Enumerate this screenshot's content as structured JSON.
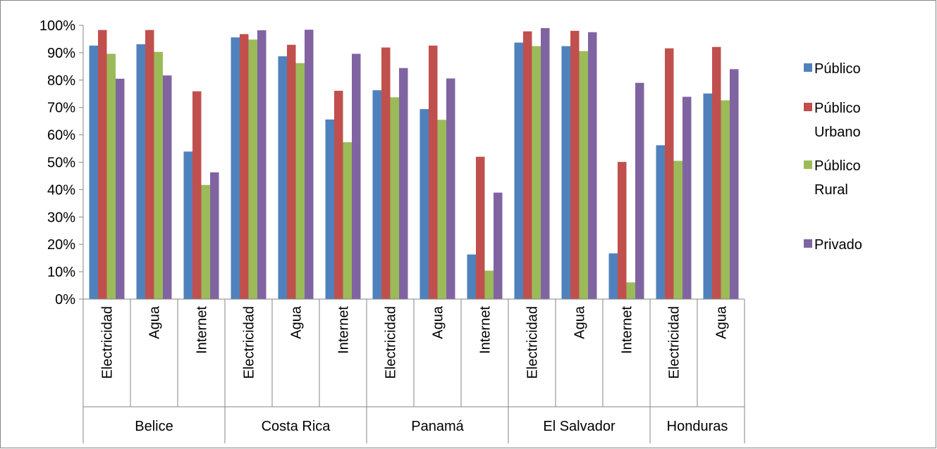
{
  "chart_data": {
    "type": "bar",
    "y_ticks": [
      "0%",
      "10%",
      "20%",
      "30%",
      "40%",
      "50%",
      "60%",
      "70%",
      "80%",
      "90%",
      "100%"
    ],
    "ylim": [
      0,
      100
    ],
    "grid": false,
    "legend_position": "right",
    "groups": [
      {
        "label": "Belice",
        "categories": [
          "Electricidad",
          "Agua",
          "Internet"
        ]
      },
      {
        "label": "Costa Rica",
        "categories": [
          "Electricidad",
          "Agua",
          "Internet"
        ]
      },
      {
        "label": "Panamá",
        "categories": [
          "Electricidad",
          "Agua",
          "Internet"
        ]
      },
      {
        "label": "El Salvador",
        "categories": [
          "Electricidad",
          "Agua",
          "Internet"
        ]
      },
      {
        "label": "Honduras",
        "categories": [
          "Electricidad",
          "Agua"
        ]
      }
    ],
    "series": [
      {
        "name": "Público",
        "legend_lines": [
          "Público"
        ],
        "color": "#4F81BD",
        "values": [
          92.6,
          93.1,
          53.9,
          95.6,
          88.7,
          65.6,
          76.3,
          69.4,
          16.3,
          93.7,
          92.4,
          16.7,
          56.2,
          75.1
        ]
      },
      {
        "name": "Público Urbano",
        "legend_lines": [
          "Público",
          "Urbano"
        ],
        "color": "#C0504D",
        "values": [
          98.3,
          98.3,
          75.9,
          96.8,
          92.9,
          76.1,
          91.9,
          92.6,
          52.0,
          97.8,
          98.0,
          50.1,
          91.6,
          92.1
        ]
      },
      {
        "name": "Público Rural",
        "legend_lines": [
          "Público",
          "Rural"
        ],
        "color": "#9BBB59",
        "values": [
          89.6,
          90.3,
          41.7,
          94.8,
          86.2,
          57.3,
          73.7,
          65.5,
          10.4,
          92.4,
          90.6,
          6.1,
          50.5,
          72.6
        ]
      },
      {
        "name": "Privado",
        "legend_lines": [
          "Privado"
        ],
        "color": "#8064A2",
        "values": [
          80.5,
          81.7,
          46.3,
          98.2,
          98.4,
          89.6,
          84.4,
          80.6,
          38.9,
          99.0,
          97.5,
          79.0,
          73.9,
          84.0
        ]
      }
    ]
  }
}
